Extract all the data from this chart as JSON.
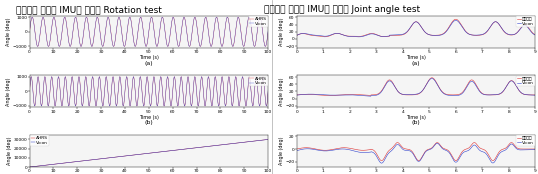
{
  "left_title": "관성센서 기반의 IMU를 이용한 Rotation test",
  "right_title": "관성센서 기반의 IMU를 이용한 Joint angle test",
  "title_fontsize": 6.5,
  "subplot_label_fontsize": 4.5,
  "axis_label_fontsize": 3.5,
  "tick_fontsize": 3.2,
  "legend_fontsize": 3.2,
  "line_color_red": "#dd3333",
  "line_color_blue": "#3344cc",
  "legend_label_ahrs": "AHRS",
  "legend_label_vicon": "Vicon",
  "legend_label_joint": "관성센서",
  "legend_label_vicon2": "Vicon",
  "left_bg": "#f5f5f5",
  "right_bg": "#f5f5f5"
}
